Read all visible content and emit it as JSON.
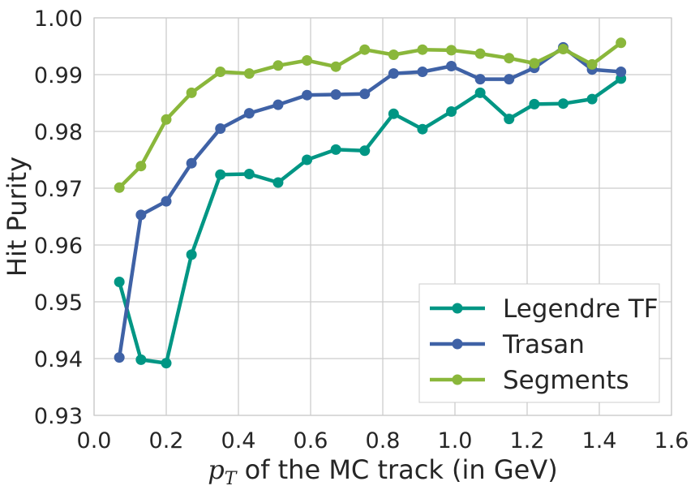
{
  "chart_data": {
    "type": "line",
    "xlabel_prefix": "p",
    "xlabel_subscript": "T",
    "xlabel_rest": " of the MC track (in GeV)",
    "ylabel": "Hit Purity",
    "xlim": [
      0.0,
      1.6
    ],
    "ylim": [
      0.93,
      1.0
    ],
    "xticks": [
      "0.0",
      "0.2",
      "0.4",
      "0.6",
      "0.8",
      "1.0",
      "1.2",
      "1.4",
      "1.6"
    ],
    "yticks": [
      "0.93",
      "0.94",
      "0.95",
      "0.96",
      "0.97",
      "0.98",
      "0.99",
      "1.00"
    ],
    "grid": true,
    "legend_position": "bottom-right",
    "x": [
      0.07,
      0.13,
      0.2,
      0.27,
      0.35,
      0.43,
      0.51,
      0.59,
      0.67,
      0.75,
      0.83,
      0.91,
      0.99,
      1.07,
      1.15,
      1.22,
      1.3,
      1.38,
      1.46
    ],
    "series": [
      {
        "name": "Legendre TF",
        "color": "#009684",
        "values": [
          0.9535,
          0.9398,
          0.9392,
          0.9583,
          0.9724,
          0.9725,
          0.971,
          0.975,
          0.9768,
          0.9766,
          0.9831,
          0.9804,
          0.9835,
          0.9868,
          0.9822,
          0.9848,
          0.9849,
          0.9857,
          0.9893
        ]
      },
      {
        "name": "Trasan",
        "color": "#3f62a6",
        "values": [
          0.9402,
          0.9653,
          0.9677,
          0.9744,
          0.9805,
          0.9832,
          0.9847,
          0.9864,
          0.9865,
          0.9866,
          0.9902,
          0.9905,
          0.9915,
          0.9892,
          0.9892,
          0.9912,
          0.9948,
          0.9909,
          0.9905
        ]
      },
      {
        "name": "Segments",
        "color": "#8ab73b",
        "values": [
          0.9701,
          0.9739,
          0.9821,
          0.9868,
          0.9905,
          0.9902,
          0.9916,
          0.9925,
          0.9914,
          0.9944,
          0.9935,
          0.9944,
          0.9943,
          0.9937,
          0.9929,
          0.992,
          0.9945,
          0.9918,
          0.9956
        ]
      }
    ]
  }
}
